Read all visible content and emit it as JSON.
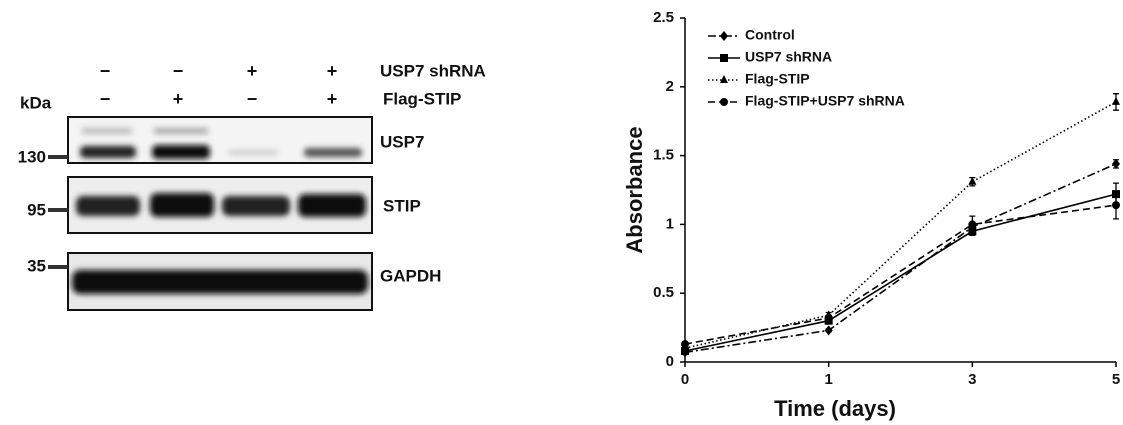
{
  "blot": {
    "kda_label": "kDa",
    "conditions": [
      {
        "name": "USP7 shRNA",
        "signs": [
          "−",
          "−",
          "+",
          "+"
        ]
      },
      {
        "name": "Flag-STIP",
        "signs": [
          "−",
          "+",
          "−",
          "+"
        ]
      }
    ],
    "markers": [
      "130",
      "95",
      "35"
    ],
    "bands": [
      "USP7",
      "STIP",
      "GAPDH"
    ]
  },
  "chart_data": {
    "type": "line",
    "xlabel": "Time (days)",
    "ylabel": "Absorbance",
    "categories": [
      "0",
      "1",
      "3",
      "5"
    ],
    "ylim": [
      0,
      2.5
    ],
    "yticks": [
      0,
      0.5,
      1,
      1.5,
      2,
      2.5
    ],
    "series": [
      {
        "name": "Control",
        "color": "#000000",
        "marker": "diamond",
        "dash": "dashdot",
        "values": [
          0.07,
          0.23,
          0.98,
          1.44
        ],
        "errors": [
          0.01,
          0.01,
          0.03,
          0.03
        ]
      },
      {
        "name": "USP7 shRNA",
        "color": "#000000",
        "marker": "square",
        "dash": "solid",
        "values": [
          0.08,
          0.3,
          0.95,
          1.22
        ],
        "errors": [
          0.01,
          0.02,
          0.03,
          0.08
        ]
      },
      {
        "name": "Flag-STIP",
        "color": "#000000",
        "marker": "triangle",
        "dash": "dotted",
        "values": [
          0.1,
          0.34,
          1.31,
          1.89
        ],
        "errors": [
          0.01,
          0.02,
          0.03,
          0.06
        ]
      },
      {
        "name": "Flag-STIP+USP7 shRNA",
        "color": "#000000",
        "marker": "circle",
        "dash": "dashed",
        "values": [
          0.13,
          0.32,
          1.0,
          1.14
        ],
        "errors": [
          0.01,
          0.02,
          0.06,
          0.1
        ]
      }
    ]
  }
}
